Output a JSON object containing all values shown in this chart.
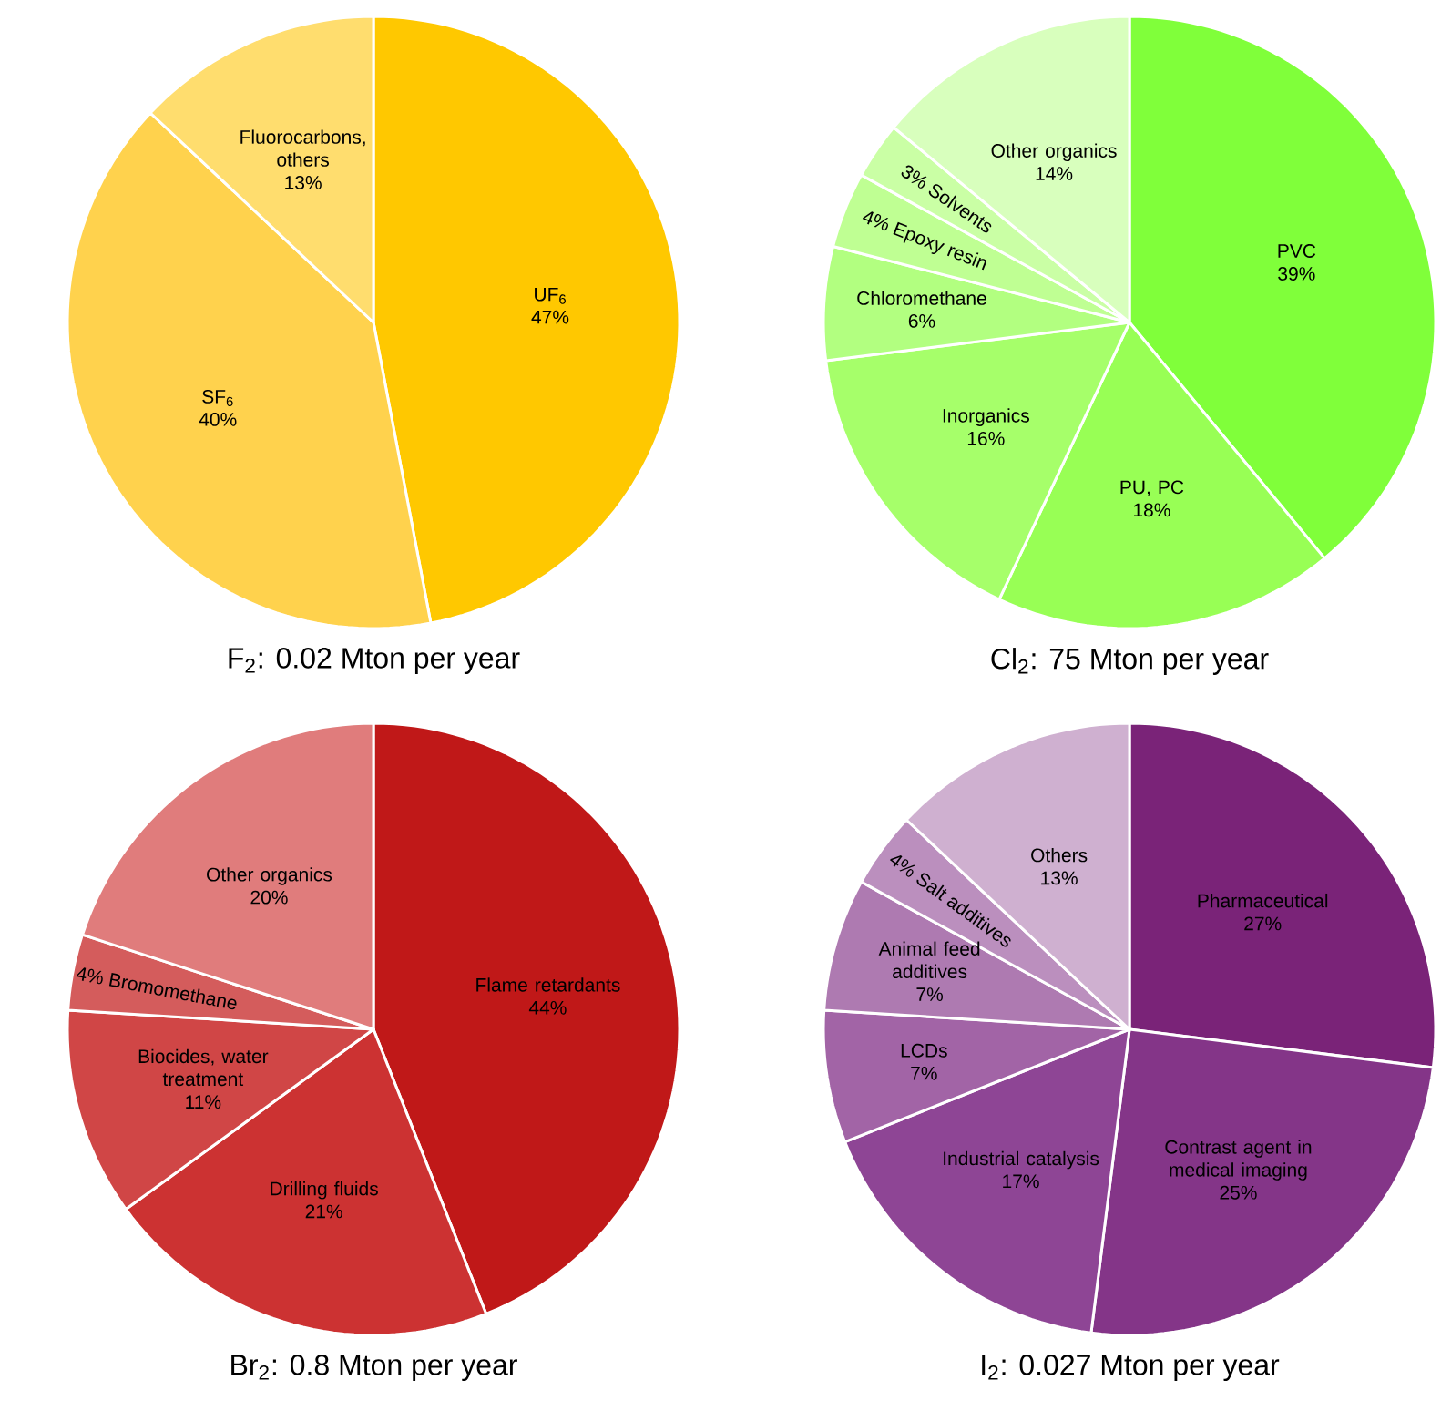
{
  "chart_data": [
    {
      "type": "pie",
      "title": "F$_{2}$: 0.02 Mton per year",
      "categories": [
        "UF$_{6}$",
        "SF$_{6}$",
        "Fluorocarbons, others"
      ],
      "values": [
        47,
        40,
        13
      ],
      "value_labels": [
        "47%",
        "40%",
        "13%"
      ],
      "colors": [
        "#ffc800",
        "#ffd24d",
        "#ffdd6e"
      ]
    },
    {
      "type": "pie",
      "title": "Cl$_{2}$: 75 Mton per year",
      "categories": [
        "PVC",
        "PU, PC",
        "Inorganics",
        "Chloromethane",
        "Epoxy resin",
        "Solvents",
        "Other organics"
      ],
      "values": [
        39,
        18,
        16,
        6,
        4,
        3,
        14
      ],
      "value_labels": [
        "39%",
        "18%",
        "16%",
        "6%",
        "4%",
        "3%",
        "14%"
      ],
      "colors": [
        "#80ff3a",
        "#98ff55",
        "#a6ff6a",
        "#b2ff80",
        "#bfff93",
        "#caffa5",
        "#d8ffbd"
      ]
    },
    {
      "type": "pie",
      "title": "Br$_{2}$: 0.8 Mton per year",
      "categories": [
        "Flame retardants",
        "Drilling fluids",
        "Biocides, water treatment",
        "Bromomethane",
        "Other organics"
      ],
      "values": [
        44,
        21,
        11,
        4,
        20
      ],
      "value_labels": [
        "44%",
        "21%",
        "11%",
        "4%",
        "20%"
      ],
      "colors": [
        "#c01818",
        "#cc3232",
        "#d04646",
        "#d45c5c",
        "#e07c7c"
      ]
    },
    {
      "type": "pie",
      "title": "I$_{2}$: 0.027 Mton per year",
      "categories": [
        "Pharmaceutical",
        "Contrast agent in medical imaging",
        "Industrial catalysis",
        "LCDs",
        "Animal feed additives",
        "Salt additives",
        "Others"
      ],
      "values": [
        27,
        25,
        17,
        7,
        7,
        4,
        13
      ],
      "value_labels": [
        "27%",
        "25%",
        "17%",
        "7%",
        "7%",
        "4%",
        "13%"
      ],
      "colors": [
        "#7a2378",
        "#843588",
        "#8e4595",
        "#a264a6",
        "#ae7ab1",
        "#bb8fbe",
        "#cfb0d0"
      ]
    }
  ]
}
